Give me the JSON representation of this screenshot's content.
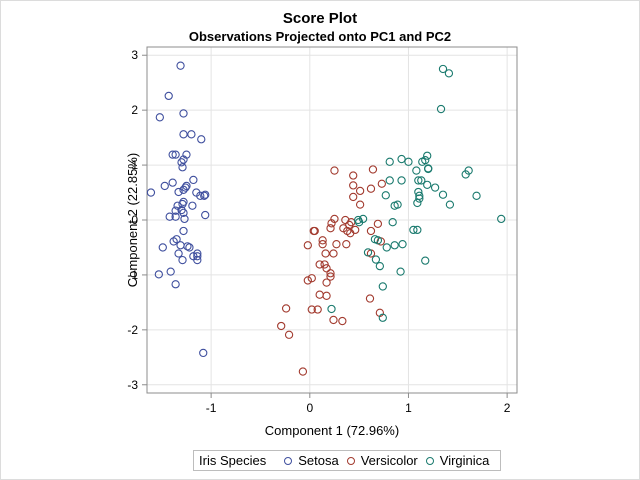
{
  "chart_data": {
    "type": "scatter",
    "title": "Score Plot",
    "subtitle": "Observations Projected onto PC1 and PC2",
    "xlabel": "Component 1 (72.96%)",
    "ylabel": "Component 2 (22.85%)",
    "xlim": [
      -1.65,
      2.1
    ],
    "ylim": [
      -3.15,
      3.15
    ],
    "xticks": [
      -1,
      0,
      1,
      2
    ],
    "yticks": [
      -3,
      -2,
      -1,
      0,
      1,
      2,
      3
    ],
    "grid": true,
    "legend": {
      "title": "Iris Species",
      "placement": "bottom",
      "entries": [
        "Setosa",
        "Versicolor",
        "Virginica"
      ]
    },
    "series": [
      {
        "name": "Setosa",
        "color": "#3f4f9e",
        "points": [
          [
            -1.31,
            2.81
          ],
          [
            -1.43,
            2.26
          ],
          [
            -1.52,
            1.87
          ],
          [
            -1.28,
            1.94
          ],
          [
            -1.28,
            1.56
          ],
          [
            -1.2,
            1.56
          ],
          [
            -1.1,
            1.47
          ],
          [
            -1.39,
            1.19
          ],
          [
            -1.36,
            1.19
          ],
          [
            -1.25,
            1.19
          ],
          [
            -1.3,
            1.05
          ],
          [
            -1.28,
            1.1
          ],
          [
            -1.29,
            0.96
          ],
          [
            -1.61,
            0.5
          ],
          [
            -1.47,
            0.62
          ],
          [
            -1.39,
            0.68
          ],
          [
            -1.18,
            0.73
          ],
          [
            -1.33,
            0.51
          ],
          [
            -1.28,
            0.55
          ],
          [
            -1.26,
            0.59
          ],
          [
            -1.25,
            0.62
          ],
          [
            -1.15,
            0.5
          ],
          [
            -1.11,
            0.44
          ],
          [
            -1.07,
            0.44
          ],
          [
            -1.06,
            0.46
          ],
          [
            -1.34,
            0.26
          ],
          [
            -1.29,
            0.29
          ],
          [
            -1.28,
            0.33
          ],
          [
            -1.3,
            0.18
          ],
          [
            -1.36,
            0.17
          ],
          [
            -1.28,
            0.13
          ],
          [
            -1.19,
            0.26
          ],
          [
            -1.42,
            0.06
          ],
          [
            -1.36,
            0.06
          ],
          [
            -1.27,
            0.02
          ],
          [
            -1.06,
            0.09
          ],
          [
            -1.28,
            -0.2
          ],
          [
            -1.38,
            -0.39
          ],
          [
            -1.35,
            -0.35
          ],
          [
            -1.49,
            -0.5
          ],
          [
            -1.31,
            -0.46
          ],
          [
            -1.24,
            -0.48
          ],
          [
            -1.22,
            -0.5
          ],
          [
            -1.33,
            -0.61
          ],
          [
            -1.18,
            -0.66
          ],
          [
            -1.14,
            -0.66
          ],
          [
            -1.14,
            -0.73
          ],
          [
            -1.29,
            -0.73
          ],
          [
            -1.14,
            -0.61
          ],
          [
            -1.53,
            -0.99
          ],
          [
            -1.41,
            -0.94
          ],
          [
            -1.36,
            -1.17
          ],
          [
            -1.08,
            -2.42
          ]
        ]
      },
      {
        "name": "Versicolor",
        "color": "#a23a2e",
        "points": [
          [
            0.25,
            0.9
          ],
          [
            0.44,
            0.81
          ],
          [
            0.64,
            0.92
          ],
          [
            0.44,
            0.63
          ],
          [
            0.51,
            0.53
          ],
          [
            0.62,
            0.57
          ],
          [
            0.73,
            0.66
          ],
          [
            0.44,
            0.42
          ],
          [
            0.51,
            0.28
          ],
          [
            0.36,
            0.0
          ],
          [
            0.25,
            0.02
          ],
          [
            0.22,
            -0.06
          ],
          [
            0.42,
            -0.04
          ],
          [
            0.04,
            -0.2
          ],
          [
            0.05,
            -0.2
          ],
          [
            0.21,
            -0.15
          ],
          [
            0.34,
            -0.15
          ],
          [
            0.38,
            -0.2
          ],
          [
            0.4,
            -0.09
          ],
          [
            0.41,
            -0.24
          ],
          [
            0.46,
            -0.18
          ],
          [
            0.69,
            -0.07
          ],
          [
            0.13,
            -0.37
          ],
          [
            0.13,
            -0.44
          ],
          [
            0.27,
            -0.44
          ],
          [
            0.37,
            -0.44
          ],
          [
            -0.02,
            -0.46
          ],
          [
            0.62,
            -0.2
          ],
          [
            0.72,
            -0.39
          ],
          [
            0.62,
            -0.61
          ],
          [
            0.16,
            -0.61
          ],
          [
            0.24,
            -0.61
          ],
          [
            0.1,
            -0.81
          ],
          [
            0.15,
            -0.81
          ],
          [
            0.17,
            -0.88
          ],
          [
            0.21,
            -0.97
          ],
          [
            -0.02,
            -1.1
          ],
          [
            0.02,
            -1.06
          ],
          [
            0.17,
            -1.14
          ],
          [
            0.21,
            -1.03
          ],
          [
            0.1,
            -1.36
          ],
          [
            0.17,
            -1.38
          ],
          [
            0.61,
            -1.43
          ],
          [
            -0.24,
            -1.61
          ],
          [
            0.02,
            -1.63
          ],
          [
            0.08,
            -1.63
          ],
          [
            0.24,
            -1.82
          ],
          [
            0.33,
            -1.84
          ],
          [
            0.71,
            -1.69
          ],
          [
            -0.29,
            -1.93
          ],
          [
            -0.21,
            -2.09
          ],
          [
            -0.07,
            -2.76
          ]
        ]
      },
      {
        "name": "Virginica",
        "color": "#1a7a6e",
        "points": [
          [
            1.35,
            2.75
          ],
          [
            1.41,
            2.67
          ],
          [
            1.33,
            2.02
          ],
          [
            0.81,
            1.06
          ],
          [
            0.93,
            1.11
          ],
          [
            1.0,
            1.06
          ],
          [
            1.14,
            1.06
          ],
          [
            1.17,
            1.09
          ],
          [
            1.19,
            1.17
          ],
          [
            1.2,
            0.94
          ],
          [
            1.2,
            0.93
          ],
          [
            1.08,
            0.9
          ],
          [
            0.81,
            0.72
          ],
          [
            0.93,
            0.72
          ],
          [
            1.1,
            0.72
          ],
          [
            1.13,
            0.72
          ],
          [
            1.19,
            0.64
          ],
          [
            1.27,
            0.59
          ],
          [
            1.35,
            0.46
          ],
          [
            1.58,
            0.83
          ],
          [
            1.61,
            0.9
          ],
          [
            1.69,
            0.44
          ],
          [
            1.42,
            0.28
          ],
          [
            1.1,
            0.51
          ],
          [
            1.11,
            0.44
          ],
          [
            1.11,
            0.39
          ],
          [
            1.09,
            0.31
          ],
          [
            0.77,
            0.45
          ],
          [
            0.89,
            0.28
          ],
          [
            0.86,
            0.26
          ],
          [
            0.54,
            0.02
          ],
          [
            0.49,
            0.0
          ],
          [
            0.5,
            -0.04
          ],
          [
            0.84,
            -0.04
          ],
          [
            1.94,
            0.02
          ],
          [
            1.05,
            -0.18
          ],
          [
            1.09,
            -0.18
          ],
          [
            0.66,
            -0.35
          ],
          [
            0.69,
            -0.37
          ],
          [
            0.78,
            -0.5
          ],
          [
            0.86,
            -0.46
          ],
          [
            0.94,
            -0.44
          ],
          [
            0.59,
            -0.59
          ],
          [
            0.67,
            -0.72
          ],
          [
            0.71,
            -0.84
          ],
          [
            1.17,
            -0.74
          ],
          [
            0.92,
            -0.94
          ],
          [
            0.74,
            -1.21
          ],
          [
            0.22,
            -1.62
          ],
          [
            0.74,
            -1.78
          ]
        ]
      }
    ]
  }
}
